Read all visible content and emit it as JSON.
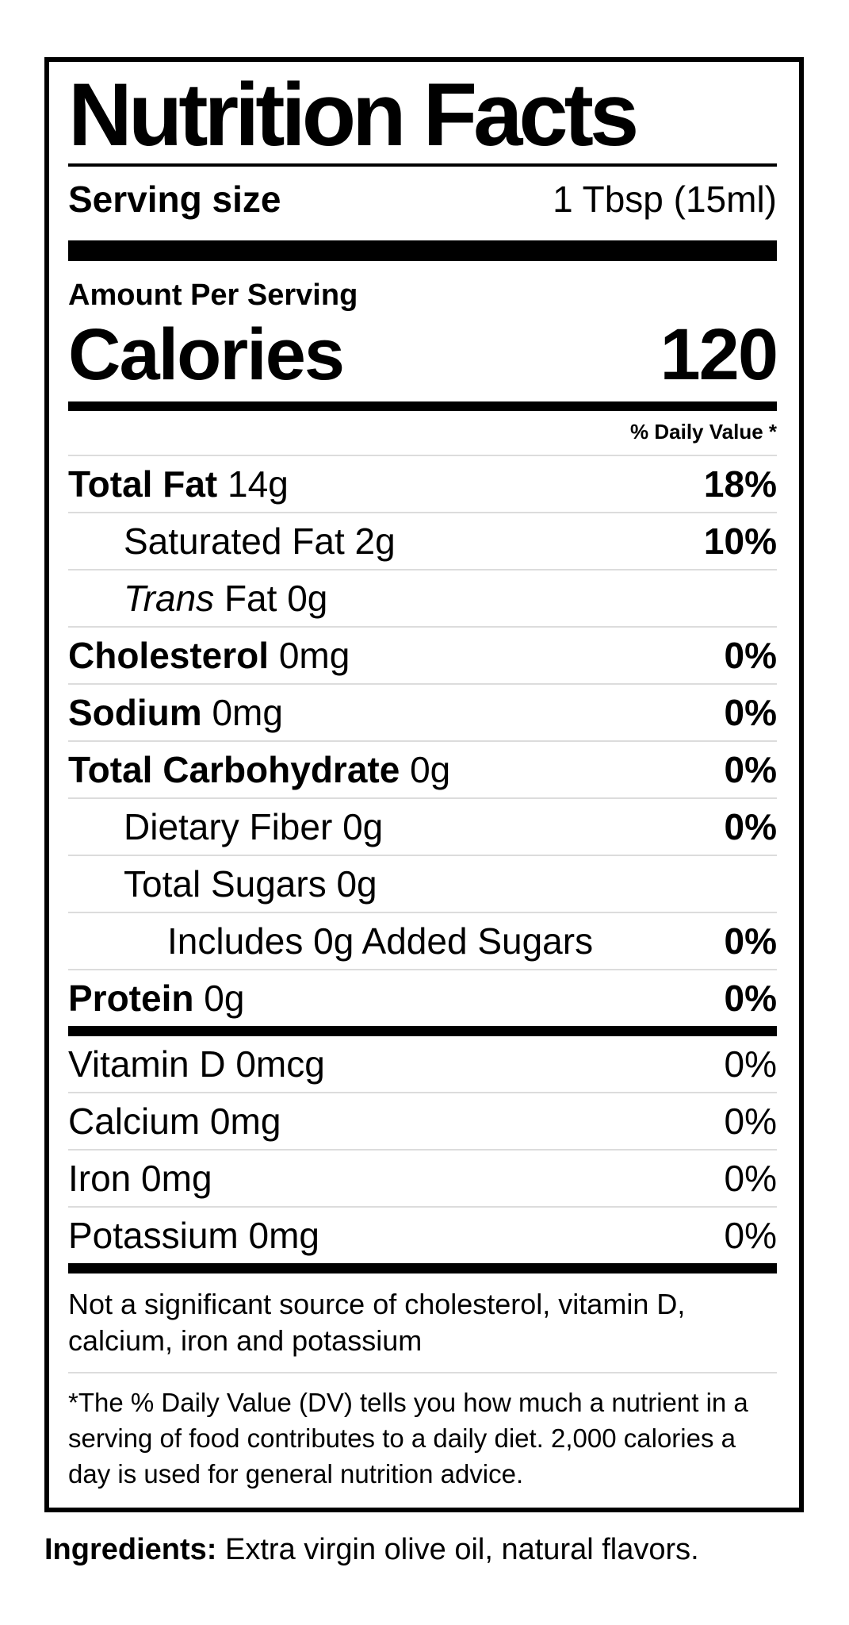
{
  "colors": {
    "background": "#ffffff",
    "text": "#000000",
    "separator": "#dcdcdc",
    "divider_bar": "#000000"
  },
  "label": {
    "title": "Nutrition Facts",
    "serving_size": {
      "label": "Serving size",
      "value": "1 Tbsp (15ml)"
    },
    "amount_per_serving": "Amount Per Serving",
    "calories": {
      "label": "Calories",
      "value": "120"
    },
    "daily_value_header": "% Daily Value *",
    "nutrients": [
      {
        "bold": "Total Fat",
        "regular": " 14g",
        "dv": "18%"
      },
      {
        "regular": "Saturated Fat 2g",
        "dv": "10%"
      },
      {
        "italic": "Trans",
        "regular": " Fat 0g",
        "dv": ""
      },
      {
        "bold": "Cholesterol",
        "regular": " 0mg",
        "dv": "0%"
      },
      {
        "bold": "Sodium",
        "regular": " 0mg",
        "dv": "0%"
      },
      {
        "bold": "Total Carbohydrate",
        "regular": " 0g",
        "dv": "0%"
      },
      {
        "regular": "Dietary Fiber 0g",
        "dv": "0%"
      },
      {
        "regular": "Total Sugars 0g",
        "dv": ""
      },
      {
        "regular": "Includes 0g Added Sugars",
        "dv": "0%"
      },
      {
        "bold": "Protein",
        "regular": " 0g",
        "dv": "0%"
      }
    ],
    "micronutrients": [
      {
        "regular": "Vitamin D 0mcg",
        "dv": "0%"
      },
      {
        "regular": "Calcium 0mg",
        "dv": "0%"
      },
      {
        "regular": "Iron 0mg",
        "dv": "0%"
      },
      {
        "regular": "Potassium 0mg",
        "dv": "0%"
      }
    ],
    "not_significant_note": "Not a significant source of cholesterol, vitamin D, calcium, iron and potassium",
    "footnote": "*The % Daily Value (DV) tells you how much a nutrient in a serving of food contributes to a daily diet. 2,000 calories a day is used for general nutrition advice."
  },
  "ingredients": {
    "label": "Ingredients:",
    "value": " Extra virgin olive oil, natural flavors."
  }
}
